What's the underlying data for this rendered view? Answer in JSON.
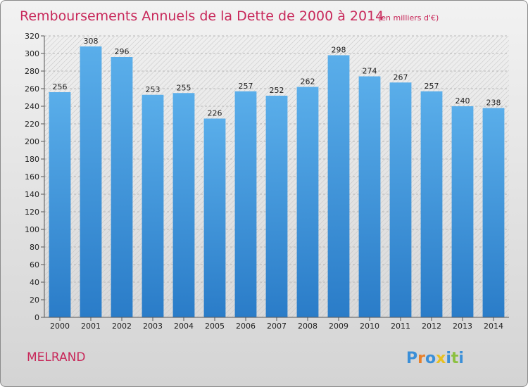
{
  "chart_data": {
    "type": "bar",
    "title": "Remboursements Annuels de la Dette de 2000 à 2014",
    "subtitle": "(en milliers d'€)",
    "categories": [
      "2000",
      "2001",
      "2002",
      "2003",
      "2004",
      "2005",
      "2006",
      "2007",
      "2008",
      "2009",
      "2010",
      "2011",
      "2012",
      "2013",
      "2014"
    ],
    "values": [
      256,
      308,
      296,
      253,
      255,
      226,
      257,
      252,
      262,
      298,
      274,
      267,
      257,
      240,
      238
    ],
    "ylim": [
      0,
      320
    ],
    "yticks": [
      0,
      20,
      40,
      60,
      80,
      100,
      120,
      140,
      160,
      180,
      200,
      220,
      240,
      260,
      280,
      300,
      320
    ],
    "grid": true,
    "bar_color": "#4a9ee0"
  },
  "footer": {
    "town": "MELRAND",
    "logo_letters": [
      "P",
      "r",
      "o",
      "x",
      "i",
      "t",
      "i"
    ],
    "logo_colors": [
      "#3a8fd8",
      "#e8802a",
      "#3a8fd8",
      "#e8c020",
      "#3a8fd8",
      "#8cc040",
      "#3a8fd8"
    ]
  }
}
